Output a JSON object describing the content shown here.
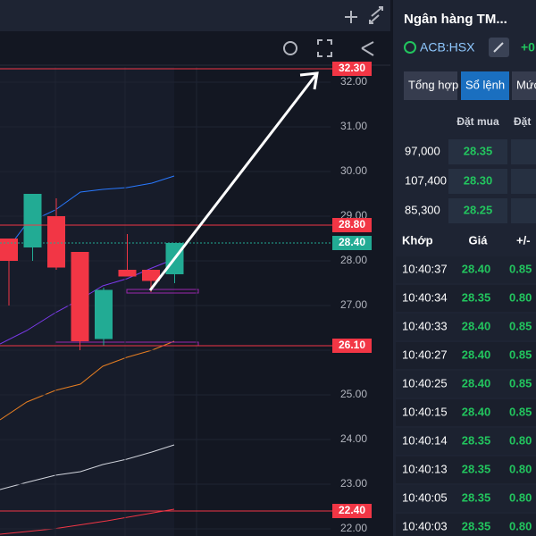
{
  "chart": {
    "yticks": [
      {
        "value": 32,
        "label": "32.00"
      },
      {
        "value": 31,
        "label": "31.00"
      },
      {
        "value": 30,
        "label": "30.00"
      },
      {
        "value": 29,
        "label": "29.00"
      },
      {
        "value": 28,
        "label": "28.00"
      },
      {
        "value": 27,
        "label": "27.00"
      },
      {
        "value": 26,
        "label": "26.00"
      },
      {
        "value": 25,
        "label": "25.00"
      },
      {
        "value": 24,
        "label": "24.00"
      },
      {
        "value": 23,
        "label": "23.00"
      },
      {
        "value": 22,
        "label": "22.00"
      }
    ],
    "price_lines": [
      {
        "value": 32.3,
        "label": "32.30",
        "color": "#f23645"
      },
      {
        "value": 28.8,
        "label": "28.80",
        "color": "#f23645"
      },
      {
        "value": 28.4,
        "label": "28.40",
        "color": "#22ab94"
      },
      {
        "value": 26.1,
        "label": "26.10",
        "color": "#f23645"
      },
      {
        "value": 22.4,
        "label": "22.40",
        "color": "#f23645"
      }
    ],
    "candles": [
      {
        "open": 28.5,
        "high": 28.5,
        "low": 27.0,
        "close": 28.0
      },
      {
        "open": 28.3,
        "high": 29.5,
        "low": 28.0,
        "close": 29.5
      },
      {
        "open": 29.0,
        "high": 29.4,
        "low": 27.8,
        "close": 27.85
      },
      {
        "open": 28.2,
        "high": 28.2,
        "low": 26.0,
        "close": 26.2
      },
      {
        "open": 26.25,
        "high": 27.4,
        "low": 26.1,
        "close": 27.35
      },
      {
        "open": 27.8,
        "high": 28.6,
        "low": 27.65,
        "close": 27.65
      },
      {
        "open": 27.8,
        "high": 27.8,
        "low": 27.3,
        "close": 27.55
      },
      {
        "open": 27.7,
        "high": 28.4,
        "low": 27.5,
        "close": 28.4
      }
    ]
  },
  "panel": {
    "title": "Ngân hàng TM...",
    "symbol": "ACB:HSX",
    "change": "+0",
    "tabs": [
      "Tổng hợp",
      "Sổ lệnh",
      "Mức giá"
    ],
    "book_header": [
      "Đặt mua",
      "Đặt"
    ],
    "book_rows": [
      [
        "97,000",
        "28.35"
      ],
      [
        "107,400",
        "28.30"
      ],
      [
        "85,300",
        "28.25"
      ]
    ],
    "trade_header": [
      "Khớp",
      "Giá",
      "+/-"
    ],
    "trades": [
      [
        "10:40:37",
        "28.40",
        "0.85"
      ],
      [
        "10:40:34",
        "28.35",
        "0.80"
      ],
      [
        "10:40:33",
        "28.40",
        "0.85"
      ],
      [
        "10:40:27",
        "28.40",
        "0.85"
      ],
      [
        "10:40:25",
        "28.40",
        "0.85"
      ],
      [
        "10:40:15",
        "28.40",
        "0.85"
      ],
      [
        "10:40:14",
        "28.35",
        "0.80"
      ],
      [
        "10:40:13",
        "28.35",
        "0.80"
      ],
      [
        "10:40:05",
        "28.35",
        "0.80"
      ],
      [
        "10:40:03",
        "28.35",
        "0.80"
      ]
    ]
  }
}
